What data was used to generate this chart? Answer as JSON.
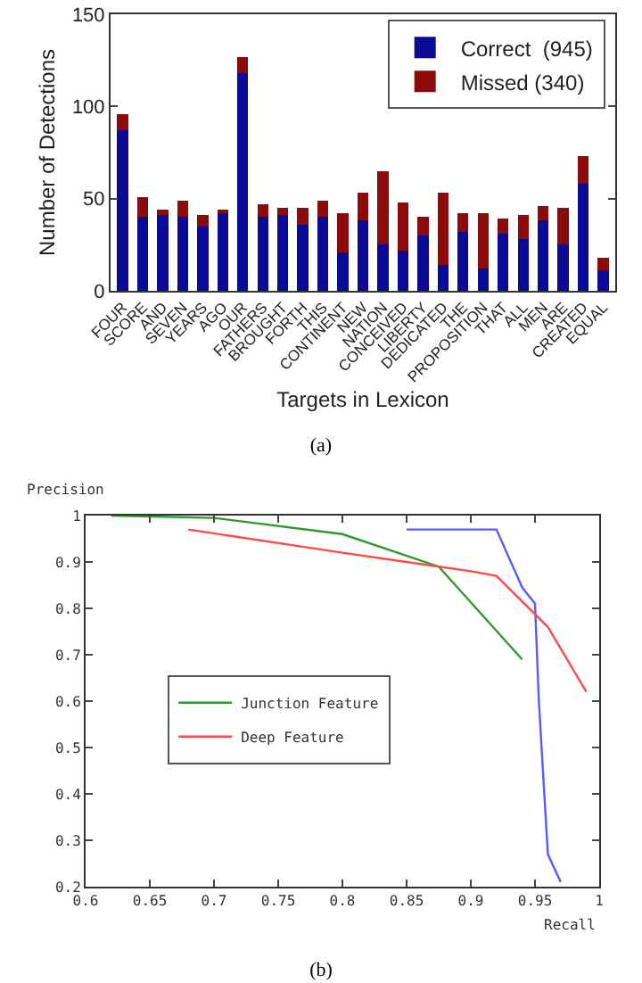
{
  "chart_data": [
    {
      "type": "bar",
      "stacked": true,
      "xlabel": "Targets in Lexicon",
      "ylabel": "Number of Detections",
      "annotations": [
        "(a)"
      ],
      "categories": [
        "FOUR",
        "SCORE",
        "AND",
        "SEVEN",
        "YEARS",
        "AGO",
        "OUR",
        "FATHERS",
        "BROUGHT",
        "FORTH",
        "THIS",
        "CONTINENT",
        "NEW",
        "NATION",
        "CONCEIVED",
        "LIBERTY",
        "DEDICATED",
        "THE",
        "PROPOSITION",
        "THAT",
        "ALL",
        "MEN",
        "ARE",
        "CREATED",
        "EQUAL"
      ],
      "series": [
        {
          "name": "Correct  (945)",
          "color": "#0a0a96",
          "values": [
            87,
            40,
            41,
            40,
            35,
            42,
            118,
            40,
            41,
            36,
            40,
            21,
            38,
            25,
            22,
            30,
            14,
            32,
            12,
            31,
            28,
            38,
            25,
            58,
            11
          ]
        },
        {
          "name": "Missed (340)",
          "color": "#8c0a0a",
          "values": [
            9,
            11,
            3,
            9,
            6,
            2,
            9,
            7,
            4,
            9,
            9,
            21,
            15,
            40,
            26,
            10,
            39,
            10,
            30,
            8,
            13,
            8,
            20,
            15,
            7
          ]
        }
      ],
      "ylim": [
        0,
        150
      ],
      "yticks": [
        0,
        50,
        100,
        150
      ],
      "grid": false,
      "legend": "top right"
    },
    {
      "type": "line",
      "xlabel": "Recall",
      "ylabel": "Precision",
      "annotations": [
        "(b)"
      ],
      "series": [
        {
          "color": "#5a5aff",
          "x": [
            0.85,
            0.92,
            0.94,
            0.95,
            0.953,
            0.96,
            0.97
          ],
          "values": [
            0.97,
            0.97,
            0.845,
            0.81,
            0.6,
            0.27,
            0.21
          ]
        },
        {
          "name": "Junction Feature",
          "color": "#2e9a2e",
          "x": [
            0.62,
            0.7,
            0.8,
            0.875,
            0.94
          ],
          "values": [
            1.0,
            0.995,
            0.96,
            0.89,
            0.69
          ]
        },
        {
          "name": "Deep Feature",
          "color": "#ff4a4a",
          "x": [
            0.68,
            0.8,
            0.85,
            0.9,
            0.92,
            0.96,
            0.99
          ],
          "values": [
            0.97,
            0.92,
            0.9,
            0.88,
            0.87,
            0.76,
            0.62
          ]
        }
      ],
      "xlim": [
        0.6,
        1
      ],
      "xticks": [
        0.6,
        0.65,
        0.7,
        0.75,
        0.8,
        0.85,
        0.9,
        0.95,
        1
      ],
      "ylim": [
        0.2,
        1
      ],
      "yticks": [
        0.2,
        0.3,
        0.4,
        0.5,
        0.6,
        0.7,
        0.8,
        0.9,
        1
      ],
      "grid": false,
      "legend": "left",
      "marker": "none",
      "line_style": "solid"
    }
  ]
}
